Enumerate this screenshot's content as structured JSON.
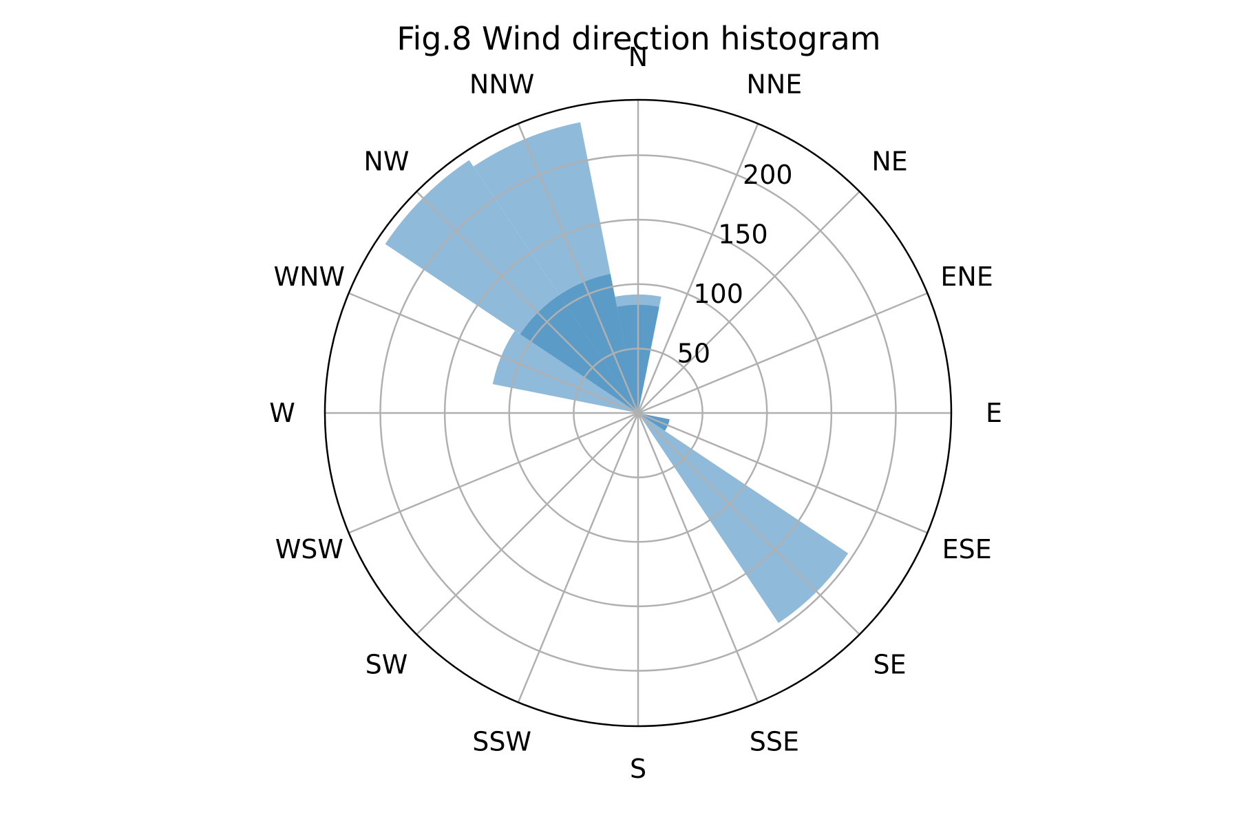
{
  "chart_data": {
    "type": "polar-bar",
    "title": "Fig.8 Wind direction histogram",
    "directions": [
      "N",
      "NNE",
      "NE",
      "ENE",
      "E",
      "ESE",
      "SE",
      "SSE",
      "S",
      "SSW",
      "SW",
      "WSW",
      "W",
      "WNW",
      "NW",
      "NNW"
    ],
    "r_ticks": [
      50,
      100,
      150,
      200
    ],
    "r_max": 243,
    "theta_zero": "N",
    "theta_direction": "clockwise",
    "series": [
      {
        "color": "#90bad9",
        "values": [
          92,
          0,
          0,
          0,
          0,
          0,
          196,
          0,
          0,
          0,
          0,
          0,
          0,
          115,
          236,
          230
        ]
      },
      {
        "color": "#5b9bc8",
        "values": [
          50,
          0,
          0,
          0,
          0,
          25,
          0,
          0,
          0,
          0,
          0,
          0,
          0,
          0,
          0,
          0
        ]
      },
      {
        "color": "#5b9bc8",
        "values": [
          84,
          0,
          0,
          0,
          0,
          0,
          0,
          0,
          0,
          0,
          0,
          0,
          0,
          0,
          110,
          110
        ]
      }
    ],
    "colors": {
      "grid": "#b0b0b0",
      "outer_ring": "#000000",
      "text": "#000000"
    }
  }
}
